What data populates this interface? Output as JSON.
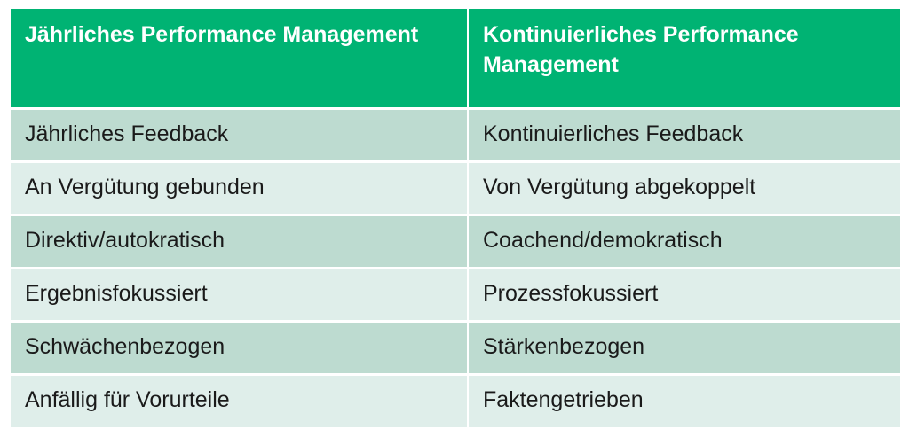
{
  "table": {
    "headers": [
      "Jährliches Performance Management",
      " Kontinuierliches Performance Management"
    ],
    "rows": [
      [
        "Jährliches Feedback",
        "Kontinuierliches Feedback"
      ],
      [
        "An Vergütung gebunden",
        "Von Vergütung abgekoppelt"
      ],
      [
        "Direktiv/autokratisch",
        "Coachend/demokratisch"
      ],
      [
        "Ergebnisfokussiert",
        "Prozessfokussiert"
      ],
      [
        "Schwächenbezogen",
        "Stärkenbezogen"
      ],
      [
        "Anfällig für Vorurteile",
        "Faktengetrieben"
      ]
    ]
  },
  "colors": {
    "header_bg": "#00b373",
    "row_dark": "#bddbd0",
    "row_light": "#dfeeea"
  }
}
